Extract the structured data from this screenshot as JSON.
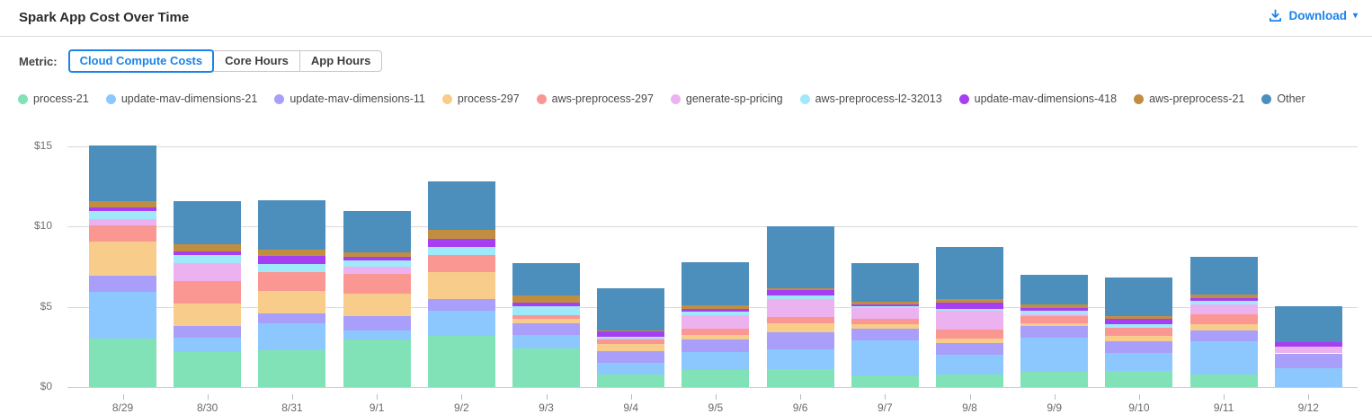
{
  "header": {
    "title": "Spark App Cost Over Time",
    "download_label": "Download"
  },
  "metric": {
    "label": "Metric:",
    "options": [
      {
        "label": "Cloud Compute Costs",
        "selected": true
      },
      {
        "label": "Core Hours",
        "selected": false
      },
      {
        "label": "App Hours",
        "selected": false
      }
    ]
  },
  "colors": {
    "accent_blue": "#1b82e8",
    "gridline": "#d9d9d9",
    "axis_text": "#6a6a6a"
  },
  "chart_data": {
    "type": "bar",
    "stacked": true,
    "title": "Spark App Cost Over Time",
    "xlabel": "",
    "ylabel": "",
    "ylim": [
      0,
      15
    ],
    "y_ticks": [
      {
        "value": 0,
        "label": "$0"
      },
      {
        "value": 5,
        "label": "$5"
      },
      {
        "value": 10,
        "label": "$10"
      },
      {
        "value": 15,
        "label": "$15"
      }
    ],
    "grid": true,
    "legend_position": "top",
    "categories": [
      "8/29",
      "8/30",
      "8/31",
      "9/1",
      "9/2",
      "9/3",
      "9/4",
      "9/5",
      "9/6",
      "9/7",
      "9/8",
      "9/9",
      "9/10",
      "9/11",
      "9/12"
    ],
    "series": [
      {
        "name": "process-21",
        "color": "#80e2b6",
        "values": [
          3.05,
          2.2,
          2.3,
          2.95,
          3.2,
          2.4,
          0.8,
          1.05,
          1.1,
          0.75,
          0.8,
          0.95,
          1.0,
          0.8,
          0.0
        ]
      },
      {
        "name": "update-mav-dimensions-21",
        "color": "#8cc8fe",
        "values": [
          2.9,
          0.9,
          1.65,
          0.6,
          1.55,
          0.85,
          0.7,
          1.15,
          1.25,
          2.15,
          1.2,
          2.15,
          1.15,
          2.05,
          1.15
        ]
      },
      {
        "name": "update-mav-dimensions-11",
        "color": "#a99ffa",
        "values": [
          1.0,
          0.7,
          0.65,
          0.9,
          0.75,
          0.7,
          0.75,
          0.75,
          1.05,
          0.75,
          0.75,
          0.7,
          0.7,
          0.65,
          0.95
        ]
      },
      {
        "name": "process-297",
        "color": "#f8cc8a",
        "values": [
          2.1,
          1.4,
          1.4,
          1.35,
          1.65,
          0.3,
          0.45,
          0.3,
          0.55,
          0.25,
          0.3,
          0.2,
          0.35,
          0.4,
          0.0
        ]
      },
      {
        "name": "aws-preprocess-297",
        "color": "#fb9793",
        "values": [
          1.05,
          1.4,
          1.15,
          1.25,
          1.1,
          0.25,
          0.3,
          0.4,
          0.4,
          0.35,
          0.55,
          0.4,
          0.5,
          0.65,
          0.0
        ]
      },
      {
        "name": "generate-sp-pricing",
        "color": "#ecb2ef",
        "values": [
          0.35,
          1.15,
          0.0,
          0.45,
          0.0,
          0.0,
          0.05,
          0.85,
          1.15,
          0.65,
          1.15,
          0.13,
          0.0,
          0.62,
          0.4
        ]
      },
      {
        "name": "aws-preprocess-l2-32013",
        "color": "#a0e9fb",
        "values": [
          0.5,
          0.5,
          0.5,
          0.4,
          0.5,
          0.55,
          0.1,
          0.2,
          0.22,
          0.13,
          0.13,
          0.25,
          0.2,
          0.23,
          0.0
        ]
      },
      {
        "name": "update-mav-dimensions-418",
        "color": "#a63ff2",
        "values": [
          0.22,
          0.22,
          0.55,
          0.2,
          0.5,
          0.2,
          0.3,
          0.17,
          0.3,
          0.1,
          0.38,
          0.13,
          0.33,
          0.15,
          0.3
        ]
      },
      {
        "name": "aws-preprocess-21",
        "color": "#c18e41",
        "values": [
          0.42,
          0.45,
          0.35,
          0.3,
          0.55,
          0.45,
          0.1,
          0.2,
          0.13,
          0.2,
          0.2,
          0.25,
          0.22,
          0.23,
          0.0
        ]
      },
      {
        "name": "Other",
        "color": "#4d8fbc",
        "values": [
          3.45,
          2.68,
          3.1,
          2.55,
          3.0,
          2.0,
          2.6,
          2.73,
          3.85,
          2.42,
          3.29,
          1.84,
          2.4,
          2.32,
          2.25
        ]
      }
    ]
  }
}
